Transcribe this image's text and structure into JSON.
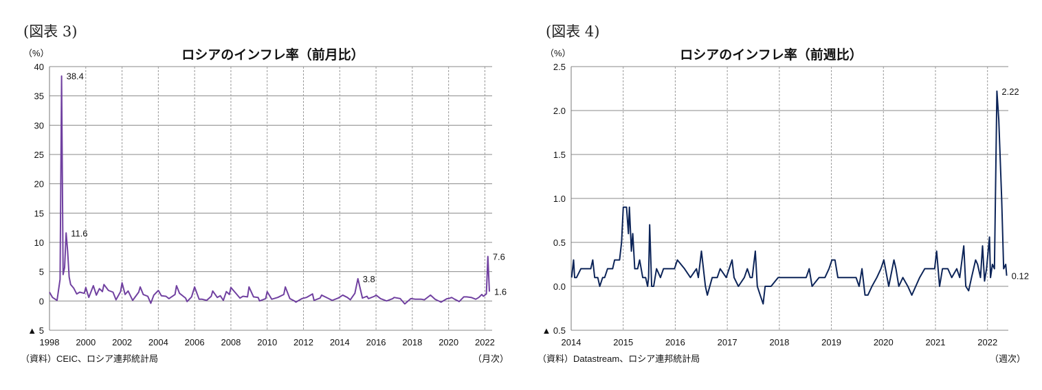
{
  "chart_data": [
    {
      "type": "line",
      "figure_label": "(図表 3)",
      "title": "ロシアのインフレ率（前月比）",
      "ylabel": "（%）",
      "xlabel": "（月次）",
      "source": "（資料）CEIC、ロシア連邦統計局",
      "ylim": [
        -5,
        40
      ],
      "yticks": [
        40,
        35,
        30,
        25,
        20,
        15,
        10,
        5,
        0,
        -5
      ],
      "ytick_labels": [
        "40",
        "35",
        "30",
        "25",
        "20",
        "15",
        "10",
        "5",
        "0",
        "▲ 5"
      ],
      "xlim": [
        1998,
        2022.4
      ],
      "xticks": [
        "1998",
        "2000",
        "2002",
        "2004",
        "2006",
        "2008",
        "2010",
        "2012",
        "2014",
        "2016",
        "2018",
        "2020",
        "2022"
      ],
      "grid": true,
      "color": "#7040a0",
      "annotations": [
        {
          "x": "1998-09",
          "y": 38.4,
          "text": "38.4"
        },
        {
          "x": "1998-12",
          "y": 11.6,
          "text": "11.6"
        },
        {
          "x": "2015-01",
          "y": 3.8,
          "text": "3.8"
        },
        {
          "x": "2022-03",
          "y": 7.6,
          "text": "7.6"
        },
        {
          "x": "2022-04",
          "y": 1.6,
          "text": "1.6"
        }
      ],
      "series": [
        {
          "x": [
            "1998-01",
            "1998-03",
            "1998-06",
            "1998-08",
            "1998-09",
            "1998-10",
            "1998-11",
            "1998-12",
            "1999-01",
            "1999-02",
            "1999-03",
            "1999-05",
            "1999-07",
            "1999-09",
            "1999-12",
            "2000-01",
            "2000-03",
            "2000-06",
            "2000-08",
            "2000-10",
            "2000-12",
            "2001-01",
            "2001-04",
            "2001-07",
            "2001-09",
            "2001-12",
            "2002-01",
            "2002-03",
            "2002-05",
            "2002-08",
            "2002-12",
            "2003-01",
            "2003-03",
            "2003-06",
            "2003-08",
            "2003-10",
            "2004-01",
            "2004-03",
            "2004-06",
            "2004-08",
            "2004-12",
            "2005-01",
            "2005-03",
            "2005-07",
            "2005-08",
            "2005-11",
            "2006-01",
            "2006-04",
            "2006-06",
            "2006-09",
            "2006-12",
            "2007-01",
            "2007-04",
            "2007-06",
            "2007-08",
            "2007-10",
            "2007-12",
            "2008-01",
            "2008-04",
            "2008-07",
            "2008-09",
            "2008-12",
            "2009-01",
            "2009-04",
            "2009-07",
            "2009-08",
            "2009-12",
            "2010-01",
            "2010-04",
            "2010-08",
            "2010-12",
            "2011-01",
            "2011-04",
            "2011-07",
            "2011-08",
            "2011-12",
            "2012-03",
            "2012-07",
            "2012-08",
            "2012-12",
            "2013-01",
            "2013-05",
            "2013-08",
            "2013-12",
            "2014-03",
            "2014-06",
            "2014-08",
            "2014-11",
            "2015-01",
            "2015-04",
            "2015-07",
            "2015-08",
            "2015-12",
            "2016-01",
            "2016-04",
            "2016-08",
            "2016-12",
            "2017-01",
            "2017-05",
            "2017-08",
            "2017-12",
            "2018-03",
            "2018-07",
            "2018-09",
            "2018-12",
            "2019-01",
            "2019-04",
            "2019-08",
            "2019-12",
            "2020-01",
            "2020-03",
            "2020-05",
            "2020-08",
            "2020-11",
            "2021-01",
            "2021-04",
            "2021-07",
            "2021-09",
            "2021-11",
            "2021-12",
            "2022-01",
            "2022-02",
            "2022-03",
            "2022-04"
          ],
          "y": [
            1.5,
            0.6,
            0.1,
            3.7,
            38.4,
            4.5,
            5.7,
            11.6,
            8.5,
            4.1,
            2.8,
            2.2,
            1.2,
            1.5,
            1.3,
            2.3,
            0.6,
            2.6,
            1.0,
            2.1,
            1.6,
            2.8,
            1.8,
            1.5,
            0.2,
            1.6,
            3.1,
            1.1,
            1.7,
            0.1,
            1.5,
            2.4,
            1.1,
            0.8,
            -0.4,
            1.0,
            1.8,
            0.9,
            0.8,
            0.4,
            1.1,
            2.6,
            1.3,
            0.5,
            -0.1,
            0.7,
            2.4,
            0.3,
            0.3,
            0.1,
            0.8,
            1.7,
            0.6,
            0.9,
            0.1,
            1.6,
            1.1,
            2.3,
            1.4,
            0.5,
            0.8,
            0.7,
            2.4,
            0.7,
            0.6,
            0.0,
            0.4,
            1.6,
            0.3,
            0.6,
            1.1,
            2.4,
            0.4,
            0.0,
            -0.2,
            0.4,
            0.6,
            1.2,
            0.1,
            0.5,
            1.0,
            0.5,
            0.1,
            0.5,
            1.0,
            0.6,
            0.2,
            1.3,
            3.8,
            0.5,
            0.8,
            0.4,
            0.8,
            1.0,
            0.4,
            0.0,
            0.4,
            0.6,
            0.4,
            -0.5,
            0.4,
            0.3,
            0.3,
            0.2,
            0.8,
            1.0,
            0.3,
            -0.2,
            0.4,
            0.4,
            0.6,
            0.3,
            -0.1,
            0.7,
            0.7,
            0.6,
            0.3,
            0.6,
            1.1,
            0.8,
            1.0,
            1.2,
            7.6,
            1.6
          ]
        }
      ]
    },
    {
      "type": "line",
      "figure_label": "(図表 4)",
      "title": "ロシアのインフレ率（前週比）",
      "ylabel": "（%）",
      "xlabel": "（週次）",
      "source": "（資料）Datastream、ロシア連邦統計局",
      "ylim": [
        -0.5,
        2.5
      ],
      "yticks": [
        2.5,
        2.0,
        1.5,
        1.0,
        0.5,
        0.0,
        -0.5
      ],
      "ytick_labels": [
        "2.5",
        "2.0",
        "1.5",
        "1.0",
        "0.5",
        "0.0",
        "▲ 0.5"
      ],
      "xlim": [
        2014,
        2022.4
      ],
      "xticks": [
        "2014",
        "2015",
        "2016",
        "2017",
        "2018",
        "2019",
        "2020",
        "2021",
        "2022"
      ],
      "grid": true,
      "color": "#0c2458",
      "annotations": [
        {
          "x": "2022-03-05",
          "y": 2.22,
          "text": "2.22"
        },
        {
          "x": "2022-05-13",
          "y": 0.12,
          "text": "0.12"
        }
      ],
      "series": [
        {
          "x": [
            "2014-01-03",
            "2014-01-17",
            "2014-01-24",
            "2014-02-07",
            "2014-03-07",
            "2014-05-16",
            "2014-05-30",
            "2014-06-13",
            "2014-07-04",
            "2014-07-18",
            "2014-08-08",
            "2014-08-22",
            "2014-09-12",
            "2014-10-17",
            "2014-10-31",
            "2014-11-14",
            "2014-12-05",
            "2014-12-19",
            "2014-12-31",
            "2015-01-23",
            "2015-02-06",
            "2015-02-13",
            "2015-02-27",
            "2015-03-06",
            "2015-03-20",
            "2015-04-10",
            "2015-04-24",
            "2015-05-15",
            "2015-06-05",
            "2015-06-19",
            "2015-06-26",
            "2015-07-03",
            "2015-07-17",
            "2015-07-31",
            "2015-08-21",
            "2015-09-18",
            "2015-10-09",
            "2015-11-13",
            "2015-12-25",
            "2016-01-15",
            "2016-03-04",
            "2016-04-15",
            "2016-05-27",
            "2016-06-10",
            "2016-07-01",
            "2016-07-29",
            "2016-08-12",
            "2016-09-16",
            "2016-10-21",
            "2016-11-11",
            "2016-12-23",
            "2017-02-03",
            "2017-02-17",
            "2017-03-17",
            "2017-04-28",
            "2017-05-19",
            "2017-06-09",
            "2017-06-23",
            "2017-07-14",
            "2017-07-28",
            "2017-08-18",
            "2017-09-08",
            "2017-09-22",
            "2017-11-03",
            "2017-12-22",
            "2018-01-26",
            "2018-02-16",
            "2018-06-01",
            "2018-07-06",
            "2018-07-27",
            "2018-08-17",
            "2018-10-05",
            "2018-11-16",
            "2018-12-14",
            "2019-01-04",
            "2019-01-25",
            "2019-02-15",
            "2019-05-17",
            "2019-06-21",
            "2019-07-12",
            "2019-08-02",
            "2019-08-23",
            "2019-09-13",
            "2019-10-11",
            "2019-11-15",
            "2019-12-13",
            "2020-01-03",
            "2020-02-07",
            "2020-03-13",
            "2020-03-27",
            "2020-04-17",
            "2020-05-15",
            "2020-06-19",
            "2020-07-17",
            "2020-08-14",
            "2020-09-11",
            "2020-10-16",
            "2020-11-27",
            "2020-12-25",
            "2021-01-08",
            "2021-01-29",
            "2021-02-19",
            "2021-03-26",
            "2021-04-23",
            "2021-05-28",
            "2021-06-18",
            "2021-07-16",
            "2021-07-30",
            "2021-08-20",
            "2021-09-10",
            "2021-10-08",
            "2021-10-22",
            "2021-11-12",
            "2021-11-26",
            "2021-12-10",
            "2021-12-24",
            "2022-01-14",
            "2022-01-21",
            "2022-02-04",
            "2022-02-18",
            "2022-03-05",
            "2022-03-18",
            "2022-04-08",
            "2022-04-22",
            "2022-05-06",
            "2022-05-13"
          ],
          "y": [
            0.1,
            0.3,
            0.1,
            0.1,
            0.2,
            0.2,
            0.3,
            0.1,
            0.1,
            0.0,
            0.1,
            0.1,
            0.2,
            0.2,
            0.3,
            0.3,
            0.3,
            0.5,
            0.9,
            0.9,
            0.6,
            0.9,
            0.4,
            0.6,
            0.2,
            0.2,
            0.3,
            0.1,
            0.1,
            0.0,
            0.1,
            0.7,
            0.0,
            0.0,
            0.2,
            0.1,
            0.2,
            0.2,
            0.2,
            0.3,
            0.2,
            0.1,
            0.2,
            0.1,
            0.4,
            0.0,
            -0.1,
            0.1,
            0.1,
            0.2,
            0.1,
            0.3,
            0.1,
            0.0,
            0.1,
            0.2,
            0.1,
            0.1,
            0.4,
            0.0,
            -0.1,
            -0.2,
            0.0,
            0.0,
            0.1,
            0.1,
            0.1,
            0.1,
            0.1,
            0.2,
            0.0,
            0.1,
            0.1,
            0.2,
            0.3,
            0.3,
            0.1,
            0.1,
            0.1,
            0.0,
            0.2,
            -0.1,
            -0.1,
            0.0,
            0.1,
            0.2,
            0.3,
            0.0,
            0.3,
            0.2,
            0.0,
            0.1,
            0.0,
            -0.1,
            0.0,
            0.1,
            0.2,
            0.2,
            0.2,
            0.4,
            0.0,
            0.2,
            0.2,
            0.1,
            0.2,
            0.1,
            0.46,
            0.0,
            -0.05,
            0.1,
            0.3,
            0.25,
            0.1,
            0.46,
            0.06,
            0.2,
            0.56,
            0.1,
            0.25,
            0.2,
            2.22,
            1.9,
            1.0,
            0.2,
            0.25,
            0.12
          ]
        }
      ]
    }
  ]
}
